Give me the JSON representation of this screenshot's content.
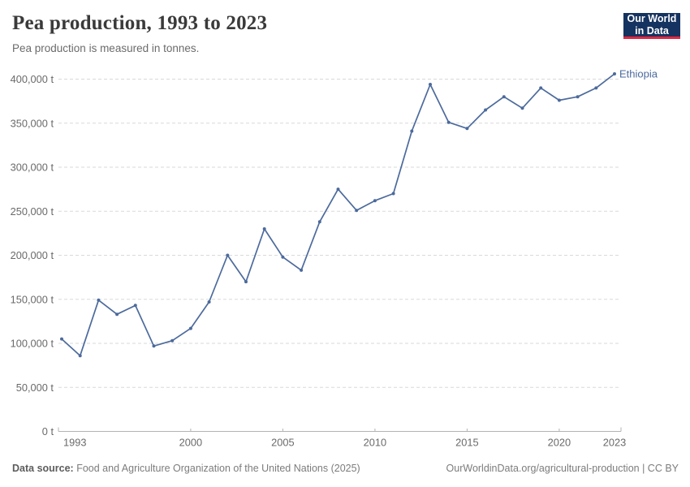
{
  "header": {
    "title": "Pea production, 1993 to 2023",
    "subtitle": "Pea production is measured in tonnes.",
    "logo": {
      "line1": "Our World",
      "line2": "in Data"
    }
  },
  "chart_data": {
    "type": "line",
    "title": "Pea production, 1993 to 2023",
    "subtitle": "Pea production is measured in tonnes.",
    "unit": "tonnes",
    "xlim": [
      1993,
      2023
    ],
    "ylim": [
      0,
      400000
    ],
    "grid": "horizontal-dashed",
    "legend_position": "end-of-line-label",
    "x": [
      1993,
      1994,
      1995,
      1996,
      1997,
      1998,
      1999,
      2000,
      2001,
      2002,
      2003,
      2004,
      2005,
      2006,
      2007,
      2008,
      2009,
      2010,
      2011,
      2012,
      2013,
      2014,
      2015,
      2016,
      2017,
      2018,
      2019,
      2020,
      2021,
      2022,
      2023
    ],
    "series": [
      {
        "name": "Ethiopia",
        "color": "#4C6A9C",
        "values": [
          105000,
          86000,
          149000,
          133000,
          143000,
          97000,
          103000,
          117000,
          147000,
          200000,
          170000,
          230000,
          198000,
          183000,
          238000,
          275000,
          251000,
          262000,
          270000,
          341000,
          394000,
          351000,
          344000,
          365000,
          380000,
          367000,
          390000,
          376000,
          380000,
          390000,
          406000
        ]
      }
    ],
    "x_ticks": [
      {
        "value": 1993,
        "label": "1993"
      },
      {
        "value": 2000,
        "label": "2000"
      },
      {
        "value": 2005,
        "label": "2005"
      },
      {
        "value": 2010,
        "label": "2010"
      },
      {
        "value": 2015,
        "label": "2015"
      },
      {
        "value": 2020,
        "label": "2020"
      },
      {
        "value": 2023,
        "label": "2023"
      }
    ],
    "y_ticks": [
      {
        "value": 0,
        "label": "0 t"
      },
      {
        "value": 50000,
        "label": "50,000 t"
      },
      {
        "value": 100000,
        "label": "100,000 t"
      },
      {
        "value": 150000,
        "label": "150,000 t"
      },
      {
        "value": 200000,
        "label": "200,000 t"
      },
      {
        "value": 250000,
        "label": "250,000 t"
      },
      {
        "value": 300000,
        "label": "300,000 t"
      },
      {
        "value": 350000,
        "label": "350,000 t"
      },
      {
        "value": 400000,
        "label": "400,000 t"
      }
    ]
  },
  "footer": {
    "source_label": "Data source:",
    "source_text": " Food and Agriculture Organization of the United Nations (2025)",
    "link_text": "OurWorldinData.org/agricultural-production | CC BY"
  },
  "colors": {
    "line": "#4C6A9C",
    "gridline": "#d9d9d9",
    "axis": "#b3b3b3",
    "tick_label": "#6a6a6a",
    "logo_bg": "#153360",
    "logo_red": "#e02740"
  }
}
